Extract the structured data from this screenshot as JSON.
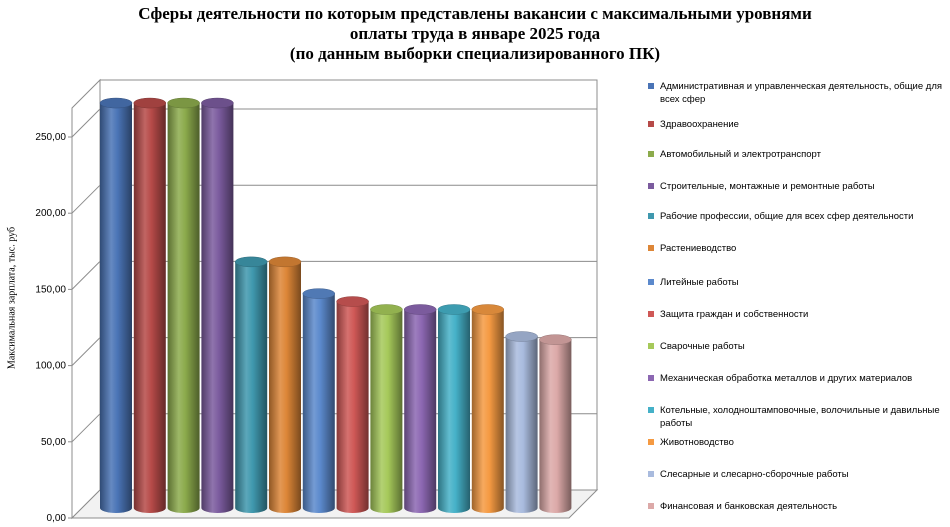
{
  "chart_data": {
    "type": "bar",
    "title_lines": [
      "Сферы деятельности по которым представлены вакансии с максимальными уровнями",
      "оплаты труда в январе 2025 года",
      "(по данным выборки специализированного ПК)"
    ],
    "ylabel": "Максимальная зарплата, тыс. руб",
    "xlabel": "",
    "ylim": [
      0,
      250
    ],
    "yticks": [
      "0,00",
      "50,00",
      "100,00",
      "150,00",
      "200,00",
      "250,00"
    ],
    "ytick_values": [
      0,
      50,
      100,
      150,
      200,
      250
    ],
    "grid": true,
    "legend_position": "right",
    "series": [
      {
        "name": "Административная и управленческая деятельность, общие для всех сфер",
        "value": 255,
        "color": "#4a74b6"
      },
      {
        "name": "Здравоохранение",
        "value": 255,
        "color": "#b64a48"
      },
      {
        "name": "Автомобильный и электротранспорт",
        "value": 255,
        "color": "#8cab4c"
      },
      {
        "name": "Строительные, монтажные и ремонтные работы",
        "value": 255,
        "color": "#7b5b9e"
      },
      {
        "name": "Рабочие профессии, общие для всех сфер деятельности",
        "value": 155,
        "color": "#3f98ae"
      },
      {
        "name": "Растениеводство",
        "value": 155,
        "color": "#dd8637"
      },
      {
        "name": "Литейные работы",
        "value": 135,
        "color": "#5b89cc"
      },
      {
        "name": "Защита граждан и собственности",
        "value": 130,
        "color": "#cf5856"
      },
      {
        "name": "Сварочные работы",
        "value": 125,
        "color": "#a6c95a"
      },
      {
        "name": "Механическая обработка металлов и других материалов",
        "value": 125,
        "color": "#8c67b2"
      },
      {
        "name": "Котельные, холодноштамповочные, волочильные и давильные работы",
        "value": 125,
        "color": "#45b1c8"
      },
      {
        "name": "Животноводство",
        "value": 125,
        "color": "#f59a42"
      },
      {
        "name": "Слесарные и слесарно-сборочные работы",
        "value": 108,
        "color": "#a9bbde"
      },
      {
        "name": "Финансовая и банковская деятельность",
        "value": 106,
        "color": "#dca9a8"
      }
    ]
  }
}
